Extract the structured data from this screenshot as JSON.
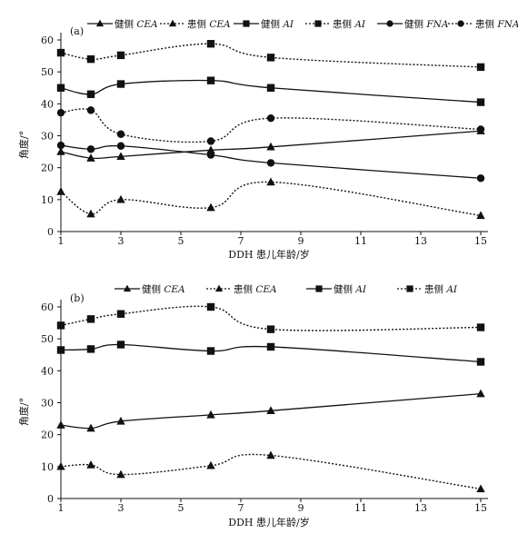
{
  "chart_data": [
    {
      "type": "line",
      "panel_label": "(a)",
      "xlabel": "DDH 患儿年龄/岁",
      "ylabel": "角度/°",
      "xlim": [
        1,
        15
      ],
      "ylim": [
        0,
        60
      ],
      "xticks": [
        1,
        3,
        5,
        7,
        9,
        11,
        13,
        15
      ],
      "yticks": [
        0,
        10,
        20,
        30,
        40,
        50,
        60
      ],
      "x": [
        1,
        2,
        3,
        6,
        8,
        15
      ],
      "grid": false,
      "legend_position": "top",
      "series": [
        {
          "name": "健侧 CEA",
          "legend_prefix": "健侧 ",
          "legend_term": "CEA",
          "marker": "triangle",
          "dashed": false,
          "values": [
            25,
            23,
            23.5,
            25.5,
            26.5,
            31.5
          ]
        },
        {
          "name": "患侧 CEA",
          "legend_prefix": "患侧 ",
          "legend_term": "CEA",
          "marker": "triangle",
          "dashed": true,
          "values": [
            12.5,
            5.5,
            10,
            7.5,
            15.5,
            5
          ]
        },
        {
          "name": "健侧 AI",
          "legend_prefix": "健侧 ",
          "legend_term": "AI",
          "marker": "square",
          "dashed": false,
          "values": [
            45,
            43,
            46.2,
            47.3,
            45,
            40.5
          ]
        },
        {
          "name": "患侧 AI",
          "legend_prefix": "患侧 ",
          "legend_term": "AI",
          "marker": "square",
          "dashed": true,
          "values": [
            56,
            54,
            55.2,
            58.8,
            54.5,
            51.5
          ]
        },
        {
          "name": "健侧 FNA",
          "legend_prefix": "健侧 ",
          "legend_term": "FNA",
          "marker": "circle",
          "dashed": false,
          "values": [
            27,
            25.8,
            26.8,
            24,
            21.5,
            16.7
          ]
        },
        {
          "name": "患侧 FNA",
          "legend_prefix": "患侧 ",
          "legend_term": "FNA",
          "marker": "circle",
          "dashed": true,
          "values": [
            37.2,
            38,
            30.5,
            28.3,
            35.5,
            32
          ]
        }
      ]
    },
    {
      "type": "line",
      "panel_label": "(b)",
      "xlabel": "DDH 患儿年龄/岁",
      "ylabel": "角度/°",
      "xlim": [
        1,
        15
      ],
      "ylim": [
        0,
        60
      ],
      "xticks": [
        1,
        3,
        5,
        7,
        9,
        11,
        13,
        15
      ],
      "yticks": [
        0,
        10,
        20,
        30,
        40,
        50,
        60
      ],
      "x": [
        1,
        2,
        3,
        6,
        8,
        15
      ],
      "grid": false,
      "legend_position": "top",
      "series": [
        {
          "name": "健侧 CEA",
          "legend_prefix": "健侧 ",
          "legend_term": "CEA",
          "marker": "triangle",
          "dashed": false,
          "values": [
            23,
            22,
            24.2,
            26.2,
            27.5,
            32.8
          ]
        },
        {
          "name": "患侧 CEA",
          "legend_prefix": "患侧 ",
          "legend_term": "CEA",
          "marker": "triangle",
          "dashed": true,
          "values": [
            10,
            10.5,
            7.5,
            10.3,
            13.5,
            3
          ]
        },
        {
          "name": "健侧 AI",
          "legend_prefix": "健侧 ",
          "legend_term": "AI",
          "marker": "square",
          "dashed": false,
          "values": [
            46.5,
            46.8,
            48.2,
            46.2,
            47.5,
            42.8
          ]
        },
        {
          "name": "患侧 AI",
          "legend_prefix": "患侧 ",
          "legend_term": "AI",
          "marker": "square",
          "dashed": true,
          "values": [
            54.2,
            56.2,
            57.8,
            60,
            53,
            53.6
          ]
        }
      ]
    }
  ]
}
